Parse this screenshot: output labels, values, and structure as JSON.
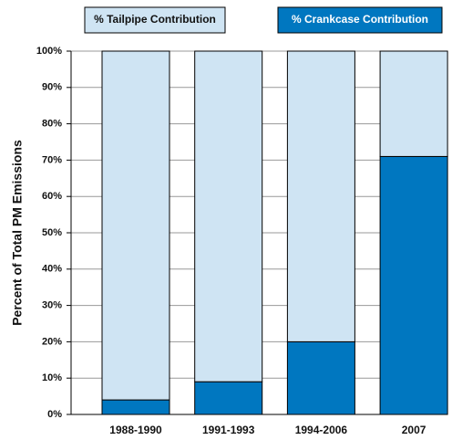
{
  "chart_data": {
    "type": "stacked_bar",
    "y_label": "Percent of Total PM Emissions",
    "categories": [
      "1988-1990",
      "1991-1993",
      "1994-2006",
      "2007"
    ],
    "series": [
      {
        "name": "% Tailpipe Contribution",
        "color": "#cfe4f3",
        "values": [
          96,
          91,
          80,
          29
        ]
      },
      {
        "name": "% Crankcase Contribution",
        "color": "#0077c0",
        "values": [
          4,
          9,
          20,
          71
        ]
      }
    ],
    "ylim": [
      0,
      100
    ],
    "yticks": [
      {
        "value": 0,
        "label": "0%"
      },
      {
        "value": 10,
        "label": "10%"
      },
      {
        "value": 20,
        "label": "20%"
      },
      {
        "value": 30,
        "label": "30%"
      },
      {
        "value": 40,
        "label": "40%"
      },
      {
        "value": 50,
        "label": "50%"
      },
      {
        "value": 60,
        "label": "60%"
      },
      {
        "value": 70,
        "label": "70%"
      },
      {
        "value": 80,
        "label": "80%"
      },
      {
        "value": 90,
        "label": "90%"
      },
      {
        "value": 100,
        "label": "100%"
      }
    ],
    "grid": true
  }
}
